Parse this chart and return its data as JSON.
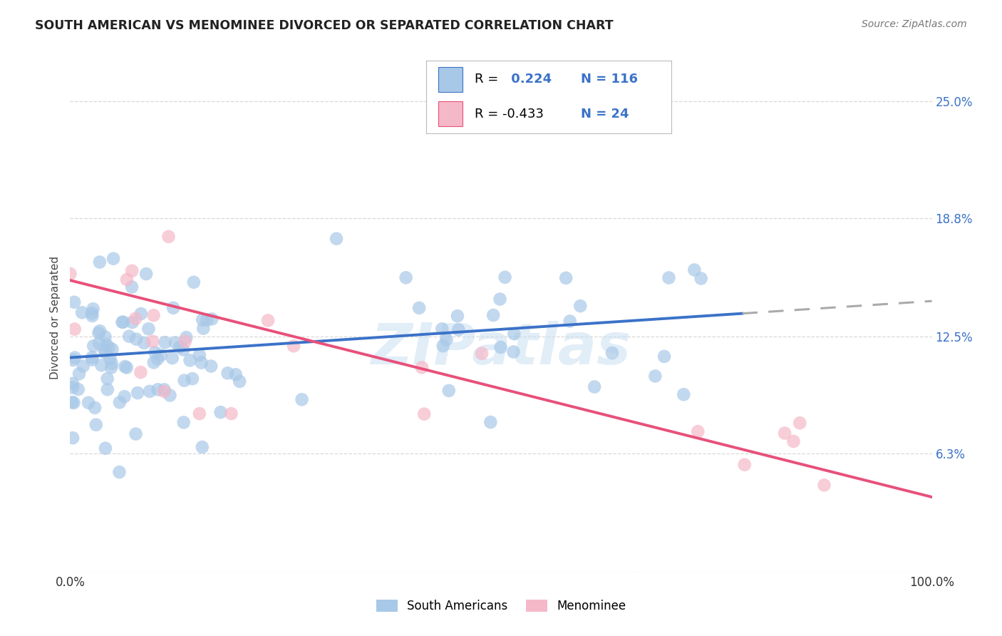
{
  "title": "SOUTH AMERICAN VS MENOMINEE DIVORCED OR SEPARATED CORRELATION CHART",
  "source": "Source: ZipAtlas.com",
  "ylabel": "Divorced or Separated",
  "legend_labels": [
    "South Americans",
    "Menominee"
  ],
  "blue_color": "#a8c8e8",
  "pink_color": "#f5b8c8",
  "trend_blue": "#3b72c8",
  "trend_pink": "#e8507a",
  "trend_gray_dash": "#aaaaaa",
  "background_color": "#ffffff",
  "grid_color": "#d8d8d8",
  "xlim": [
    0.0,
    1.0
  ],
  "ylim": [
    0.0,
    0.27
  ],
  "watermark": "ZIPatlas",
  "blue_n": 116,
  "pink_n": 24,
  "blue_intercept": 0.114,
  "blue_slope": 0.03,
  "pink_intercept": 0.155,
  "pink_slope": -0.115,
  "legend_text_color": "#3b72c8",
  "right_label_color": "#3b72c8",
  "title_color": "#222222",
  "source_color": "#777777"
}
